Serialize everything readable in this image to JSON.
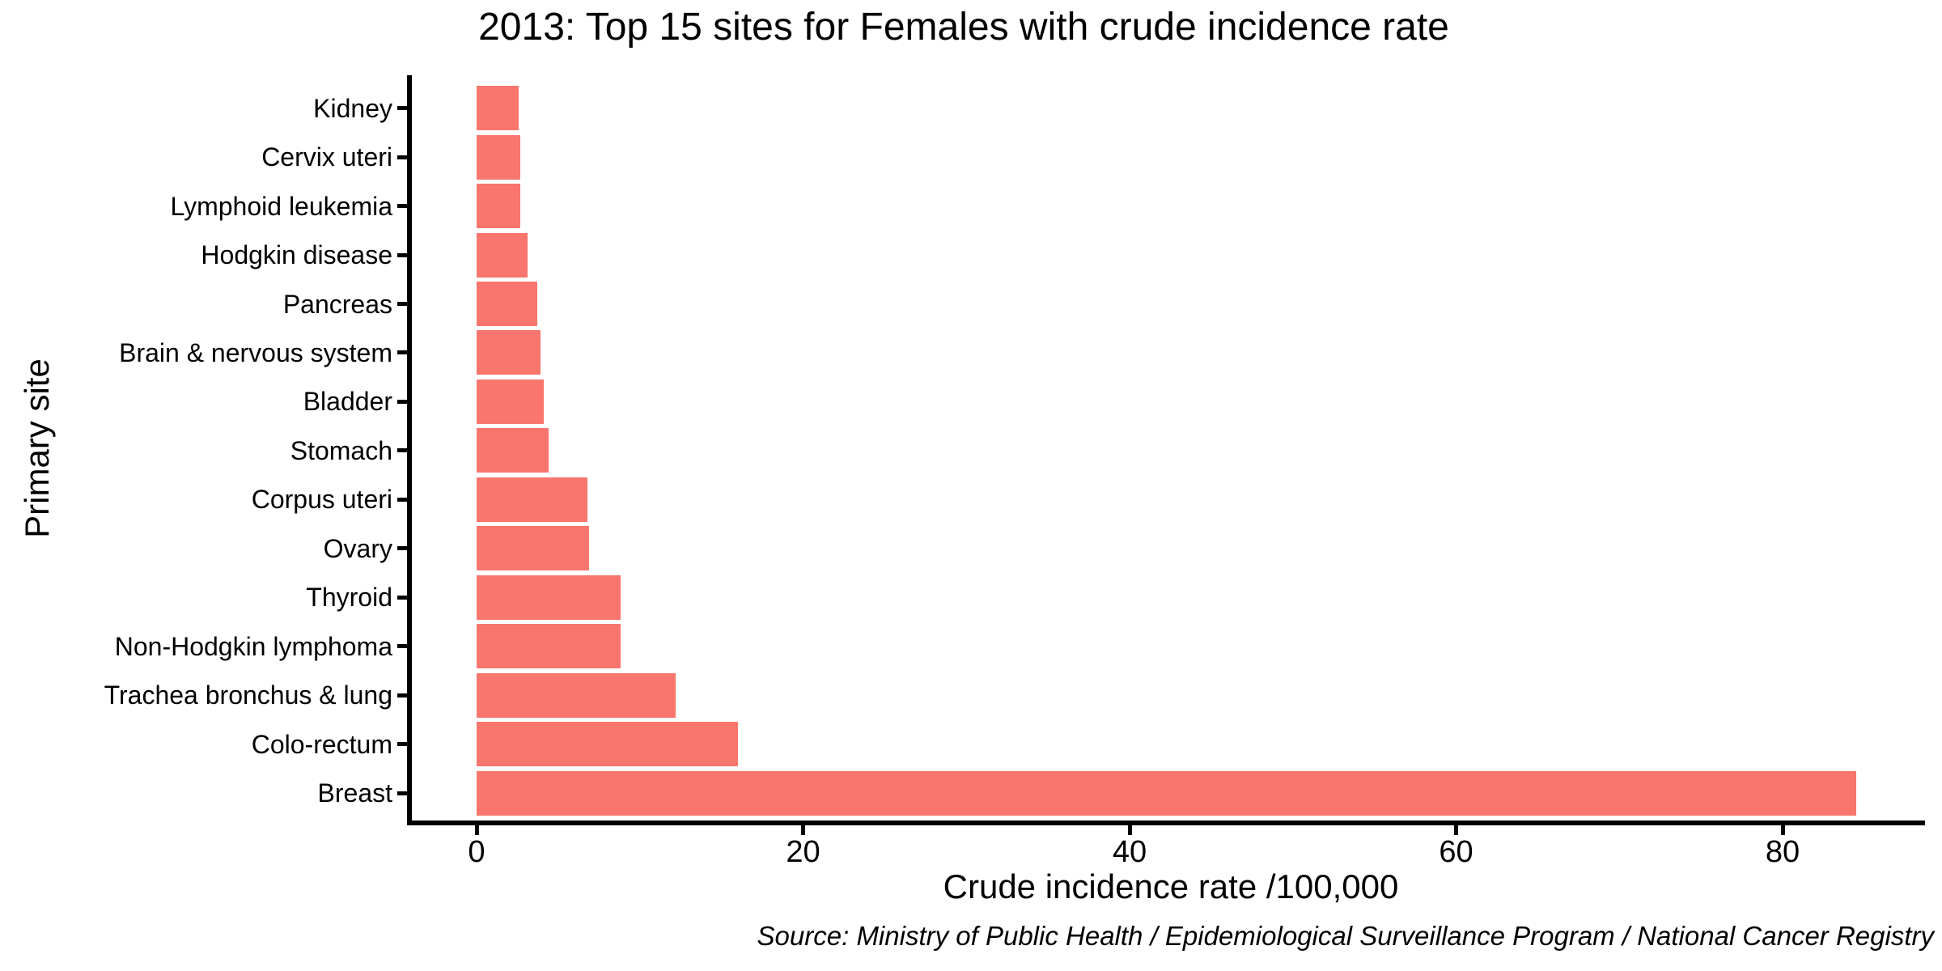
{
  "title": "2013: Top 15 sites for Females with crude incidence rate",
  "source": "Source: Ministry of Public Health / Epidemiological Surveillance Program / National Cancer Registry",
  "colors": {
    "bar": "#F8766D",
    "axis": "#000000",
    "background": "#FFFFFF",
    "text": "#000000"
  },
  "chart_data": {
    "type": "bar",
    "orientation": "horizontal",
    "title": "2013: Top 15 sites for Females with crude incidence rate",
    "xlabel": "Crude incidence rate /100,000",
    "ylabel": "Primary site",
    "categories": [
      "Kidney",
      "Cervix uteri",
      "Lymphoid leukemia",
      "Hodgkin disease",
      "Pancreas",
      "Brain & nervous system",
      "Bladder",
      "Stomach",
      "Corpus uteri",
      "Ovary",
      "Thyroid",
      "Non-Hodgkin lymphoma",
      "Trachea bronchus & lung",
      "Colo-rectum",
      "Breast"
    ],
    "values": [
      2.6,
      2.7,
      2.7,
      3.1,
      3.7,
      3.9,
      4.1,
      4.4,
      6.8,
      6.9,
      8.8,
      8.8,
      12.2,
      16,
      84.5
    ],
    "x_ticks": [
      0,
      20,
      40,
      60,
      80
    ],
    "xlim": [
      -4.3,
      88.7
    ],
    "grid": false,
    "legend": false,
    "bar_color": "#F8766D"
  }
}
